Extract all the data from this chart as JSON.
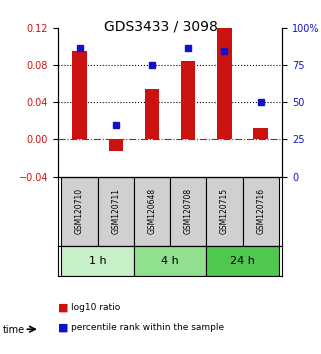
{
  "title": "GDS3433 / 3098",
  "samples": [
    "GSM120710",
    "GSM120711",
    "GSM120648",
    "GSM120708",
    "GSM120715",
    "GSM120716"
  ],
  "log10_ratio": [
    0.095,
    -0.012,
    0.055,
    0.085,
    0.12,
    0.012
  ],
  "percentile_rank": [
    87,
    35,
    75,
    87,
    85,
    50
  ],
  "ylim_left": [
    -0.04,
    0.12
  ],
  "ylim_right": [
    0,
    100
  ],
  "yticks_left": [
    -0.04,
    0.0,
    0.04,
    0.08,
    0.12
  ],
  "yticks_right": [
    0,
    25,
    50,
    75,
    100
  ],
  "ytick_labels_right": [
    "0",
    "25",
    "50",
    "75",
    "100%"
  ],
  "hlines": [
    0.08,
    0.04
  ],
  "zero_line": 0.0,
  "time_groups": [
    {
      "label": "1 h",
      "indices": [
        0,
        1
      ],
      "color": "#c8f0c8"
    },
    {
      "label": "4 h",
      "indices": [
        2,
        3
      ],
      "color": "#90e090"
    },
    {
      "label": "24 h",
      "indices": [
        4,
        5
      ],
      "color": "#50c850"
    }
  ],
  "bar_color": "#cc1111",
  "dot_color": "#1111cc",
  "background_color": "#ffffff",
  "label_color_red": "#cc1111",
  "label_color_blue": "#1111cc",
  "label_red": "log10 ratio",
  "label_blue": "percentile rank within the sample",
  "sample_box_color": "#d0d0d0",
  "bar_width": 0.4
}
